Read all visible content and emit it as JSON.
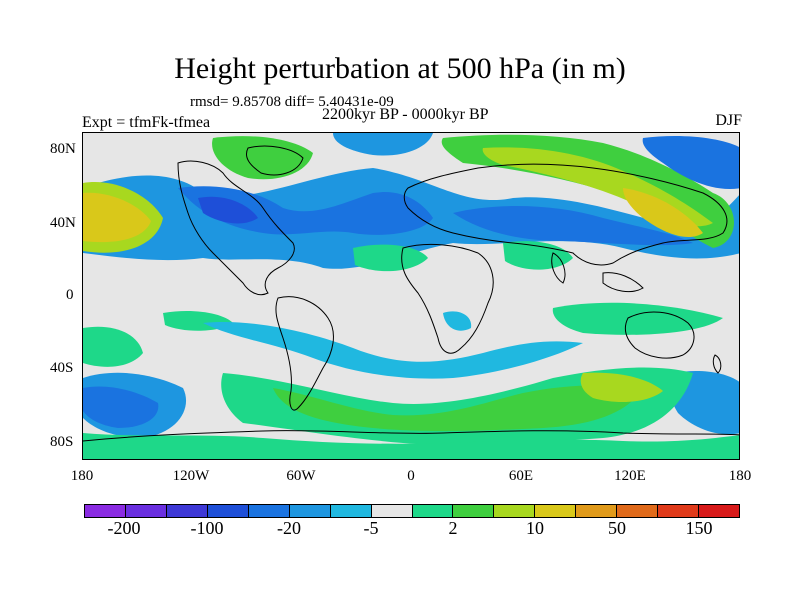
{
  "title": "Height perturbation at 500 hPa (in m)",
  "stats": "rmsd= 9.85708  diff= 5.40431e-09",
  "period": "2200kyr BP - 0000kyr BP",
  "experiment": "Expt = tfmFk-tfmea",
  "season": "DJF",
  "lat_ticks": [
    "80N",
    "40N",
    "0",
    "40S",
    "80S"
  ],
  "lon_ticks": [
    "180",
    "120W",
    "60W",
    "0",
    "60E",
    "120E",
    "180"
  ],
  "colorbar": {
    "colors": [
      "#8a2be2",
      "#6a2fe0",
      "#3e38d6",
      "#1e4fd8",
      "#1a73e0",
      "#1e96e0",
      "#20b8e0",
      "#e6e6e6",
      "#1ed889",
      "#3fcf3f",
      "#a8d81f",
      "#d9c81a",
      "#e09a1a",
      "#e06a1a",
      "#e03a1a",
      "#d81a1a"
    ],
    "labels": [
      "-200",
      "-100",
      "-20",
      "-5",
      "2",
      "10",
      "50",
      "150"
    ]
  },
  "map": {
    "background_color": "#e6e6e6",
    "coastline_color": "#000000"
  }
}
